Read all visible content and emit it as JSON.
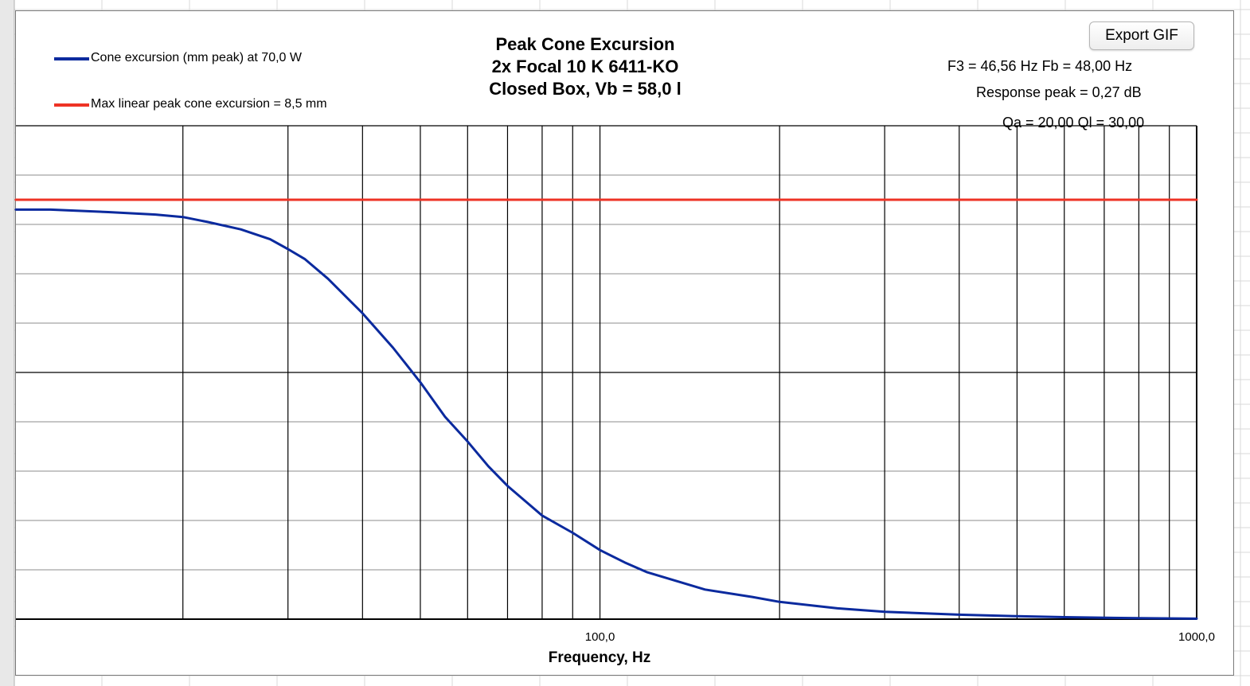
{
  "toolbar": {
    "export_label": "Export GIF"
  },
  "title_lines": [
    "Peak Cone Excursion",
    "2x Focal 10 K 6411-KO",
    "Closed Box, Vb = 58,0 l"
  ],
  "info": {
    "f3_fb": "F3 = 46,56 Hz  Fb = 48,00 Hz",
    "response_peak": "Response peak = 0,27 dB",
    "losses": "Qa = 20,00  Ql = 30,00"
  },
  "colors": {
    "excursion": "#0b2a9e",
    "xmax": "#ee3325",
    "grid": "#000000",
    "minor_grid": "#8c8c8c"
  },
  "chart_data": {
    "type": "line",
    "title": "Peak Cone Excursion",
    "xlabel": "Frequency, Hz",
    "ylabel": "",
    "x_scale": "log",
    "xlim": [
      10.5,
      1000
    ],
    "ylim": [
      0,
      10
    ],
    "x_tick_labels": [
      {
        "value": 100,
        "label": "100,0"
      },
      {
        "value": 1000,
        "label": "1000,0"
      }
    ],
    "legend": "top-left",
    "grid": true,
    "series": [
      {
        "name": "Cone excursion (mm peak) at 70,0 W",
        "color": "#0b2a9e",
        "x": [
          10.5,
          12,
          15,
          18,
          20,
          22,
          25,
          28,
          30,
          32,
          35,
          40,
          45,
          50,
          55,
          60,
          65,
          70,
          80,
          90,
          100,
          110,
          120,
          150,
          180,
          200,
          250,
          300,
          400,
          500,
          600,
          800,
          1000
        ],
        "y": [
          8.3,
          8.3,
          8.25,
          8.2,
          8.15,
          8.05,
          7.9,
          7.7,
          7.5,
          7.3,
          6.9,
          6.2,
          5.5,
          4.8,
          4.1,
          3.6,
          3.1,
          2.7,
          2.1,
          1.75,
          1.4,
          1.15,
          0.95,
          0.6,
          0.45,
          0.35,
          0.22,
          0.15,
          0.09,
          0.06,
          0.04,
          0.02,
          0.01
        ]
      },
      {
        "name": "Max linear peak cone excursion = 8,5 mm",
        "color": "#ee3325",
        "x": [
          10.5,
          1000
        ],
        "y": [
          8.5,
          8.5
        ]
      }
    ]
  }
}
